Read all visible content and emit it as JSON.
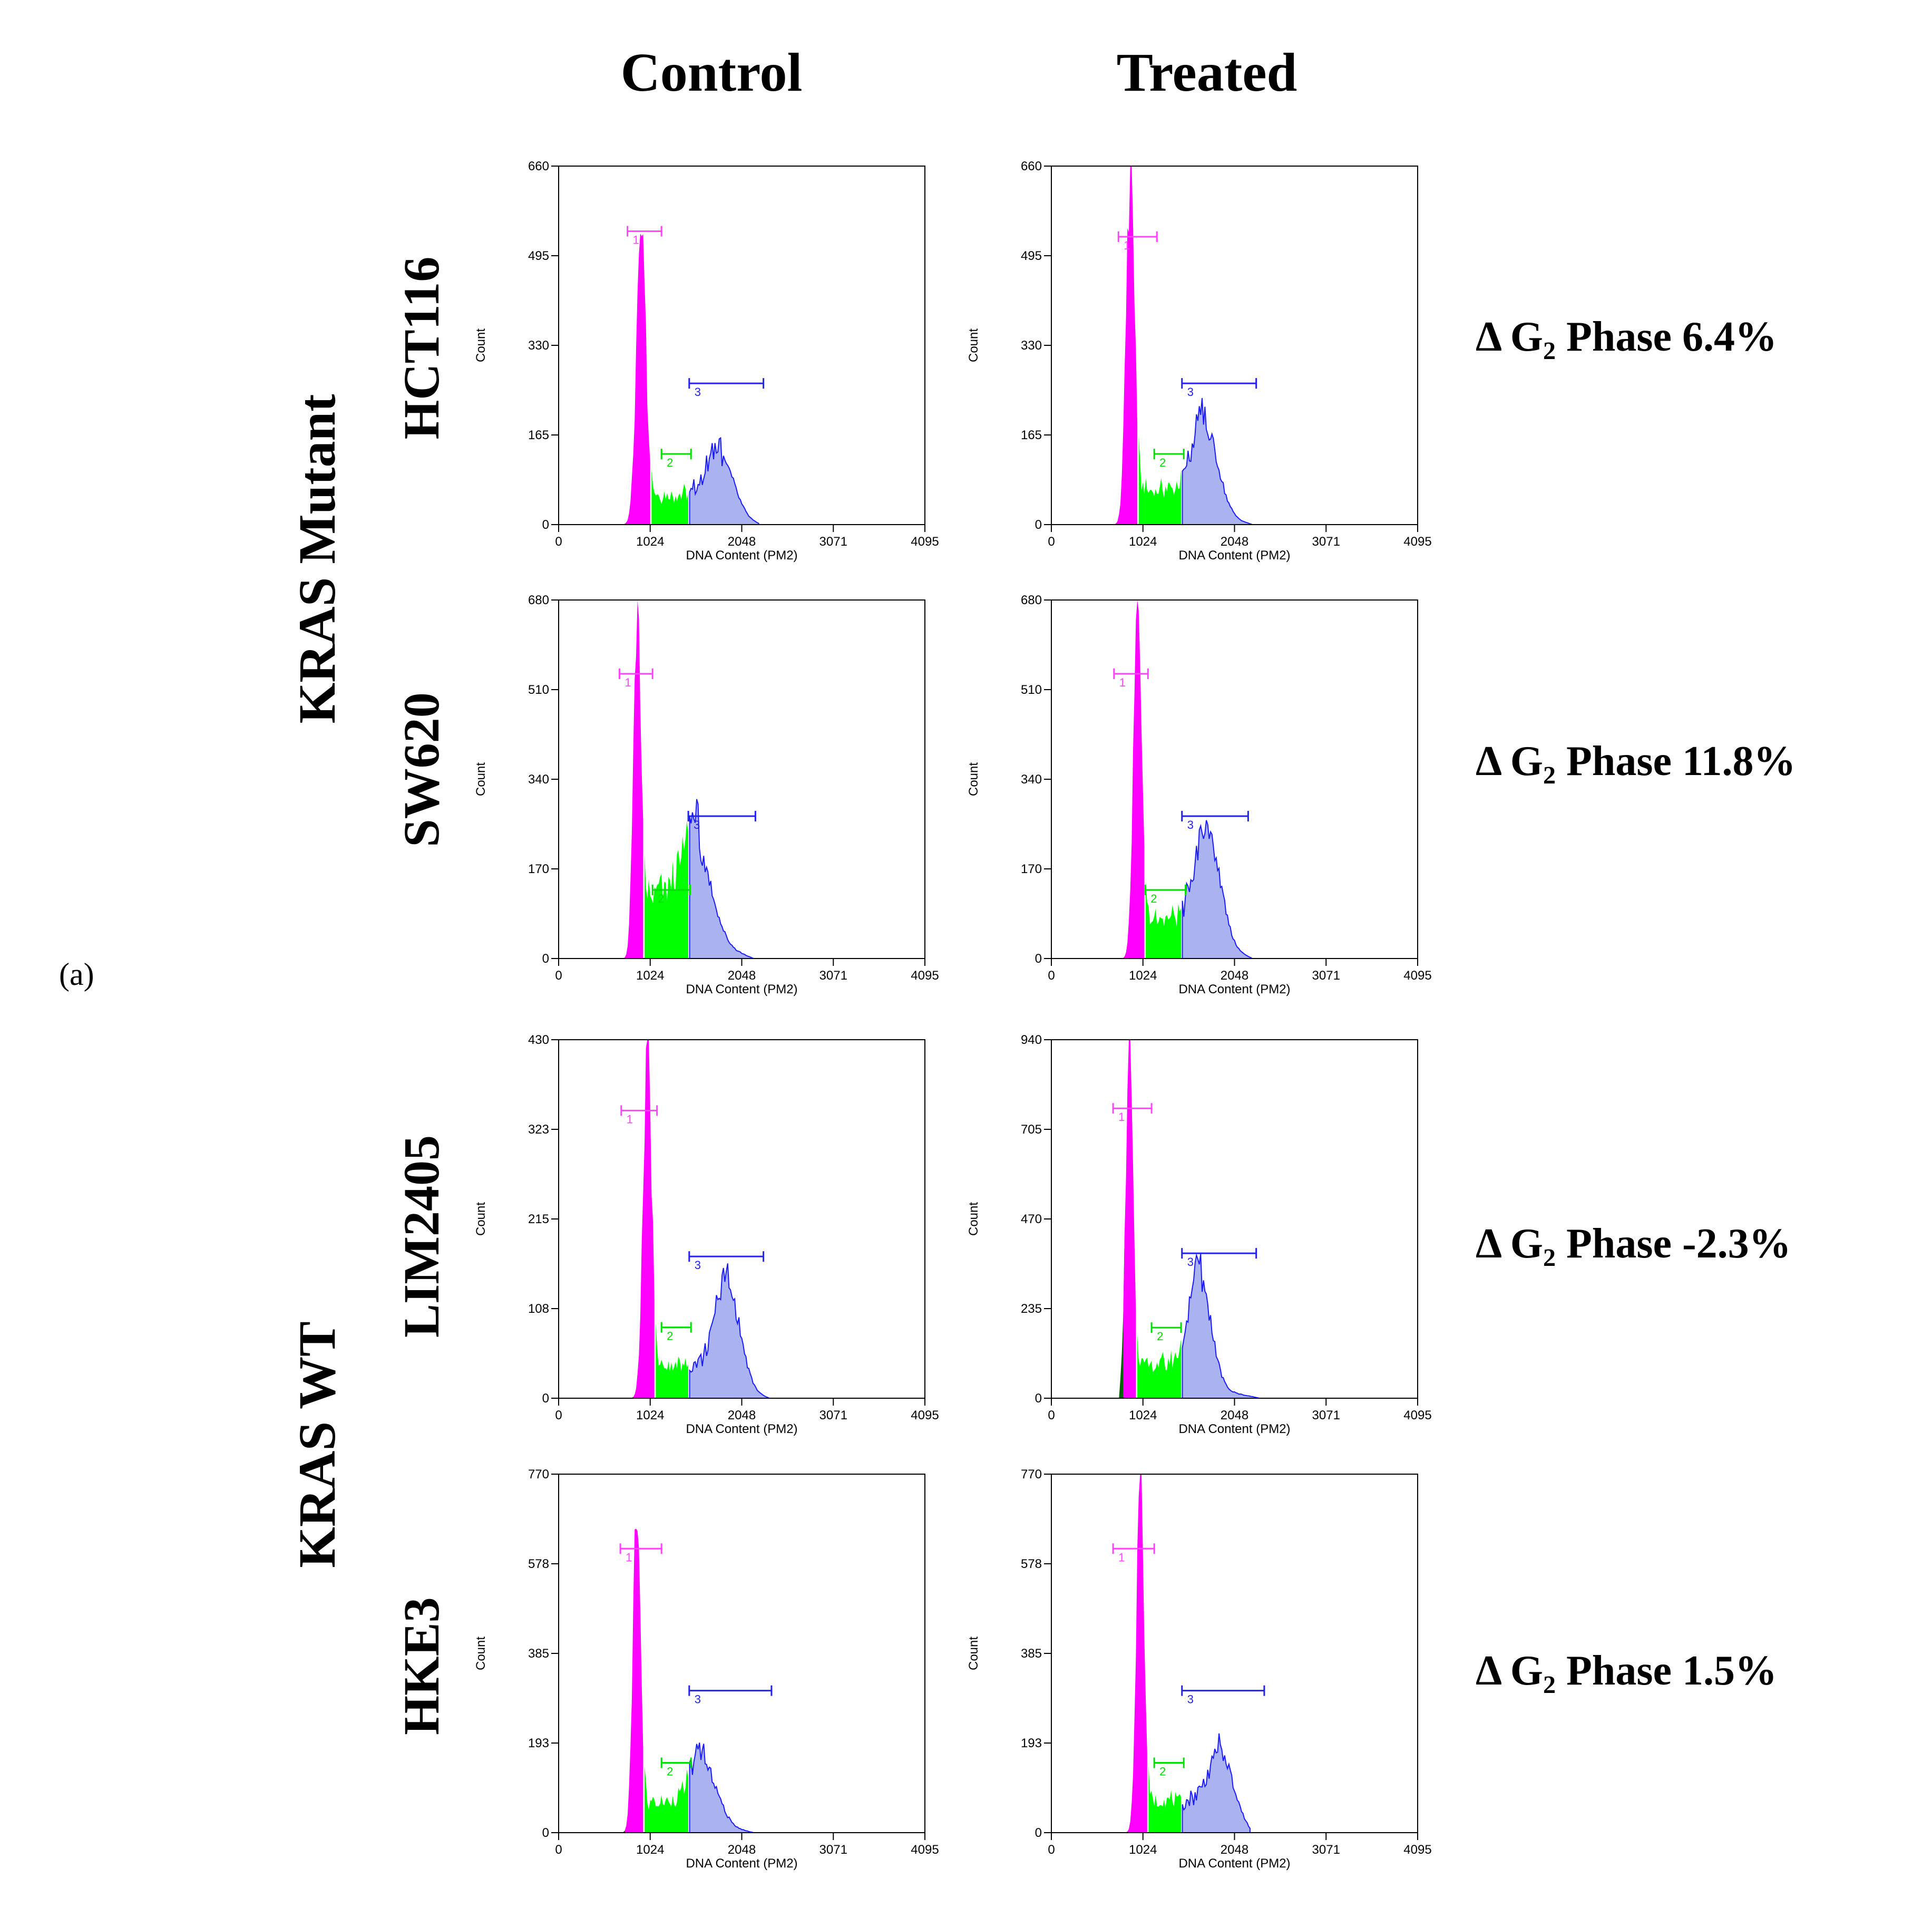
{
  "figure": {
    "panel_label": "(a)",
    "columns": [
      "Control",
      "Treated"
    ],
    "groups": [
      {
        "label": "KRAS Mutant",
        "rows": [
          0,
          1
        ]
      },
      {
        "label": "KRAS WT",
        "rows": [
          2,
          3
        ]
      }
    ],
    "rows": [
      {
        "cell_line": "HCT116",
        "delta_text": "Δ G₂ Phase 6.4%"
      },
      {
        "cell_line": "SW620",
        "delta_text": "Δ G₂ Phase 11.8%"
      },
      {
        "cell_line": "LIM2405",
        "delta_text": "Δ G₂ Phase -2.3%"
      },
      {
        "cell_line": "HKE3",
        "delta_text": "Δ G₂ Phase 1.5%"
      }
    ]
  },
  "colors": {
    "g1": "#ff00ff",
    "s": "#00ff00",
    "g2": "#aab2f0",
    "g2_edge": "#1a1aff",
    "tail": "#006400",
    "gate1": "#ff44ff",
    "gate2": "#00dd00",
    "gate3": "#2222ee"
  },
  "chart_data": [
    {
      "type": "area",
      "title": "HCT116 Control",
      "xlabel": "DNA Content (PM2)",
      "ylabel": "Count",
      "xlim": [
        0,
        4095
      ],
      "x_ticks": [
        "0",
        "1024",
        "2048",
        "3071",
        "4095"
      ],
      "ylim": [
        0,
        660
      ],
      "y_ticks": [
        "0",
        "165",
        "330",
        "495",
        "660"
      ],
      "peaks": {
        "g1_x": 920,
        "g1_h": 510,
        "g1_w": 95,
        "s_level": 55,
        "g2_x": 1820,
        "g2_h": 100,
        "g2_w": 240,
        "left": 700,
        "right": 2250
      },
      "gates": {
        "gate1": [
          770,
          1150,
          540
        ],
        "gate2": [
          1150,
          1480,
          130
        ],
        "gate3": [
          1460,
          2290,
          260
        ]
      }
    },
    {
      "type": "area",
      "title": "HCT116 Treated",
      "xlabel": "DNA Content (PM2)",
      "ylabel": "Count",
      "xlim": [
        0,
        4095
      ],
      "x_ticks": [
        "0",
        "1024",
        "2048",
        "3071",
        "4095"
      ],
      "ylim": [
        0,
        660
      ],
      "y_ticks": [
        "0",
        "165",
        "330",
        "495",
        "660"
      ],
      "peaks": {
        "g1_x": 880,
        "g1_h": 620,
        "g1_w": 85,
        "s_level": 65,
        "g2_x": 1730,
        "g2_h": 150,
        "g2_w": 230,
        "left": 680,
        "right": 2250
      },
      "gates": {
        "gate1": [
          750,
          1180,
          530
        ],
        "gate2": [
          1150,
          1480,
          130
        ],
        "gate3": [
          1460,
          2290,
          260
        ]
      }
    },
    {
      "type": "area",
      "title": "SW620 Control",
      "xlabel": "DNA Content (PM2)",
      "ylabel": "Count",
      "xlim": [
        0,
        4095
      ],
      "x_ticks": [
        "0",
        "1024",
        "2048",
        "3071",
        "4095"
      ],
      "ylim": [
        0,
        680
      ],
      "y_ticks": [
        "0",
        "170",
        "340",
        "510",
        "680"
      ],
      "peaks": {
        "g1_x": 870,
        "g1_h": 640,
        "g1_w": 70,
        "s_level": 120,
        "g2_x": 1560,
        "g2_h": 160,
        "g2_w": 260,
        "left": 580,
        "right": 2180
      },
      "gates": {
        "gate1": [
          680,
          1050,
          540
        ],
        "gate2": [
          1050,
          1470,
          130
        ],
        "gate3": [
          1450,
          2200,
          270
        ]
      }
    },
    {
      "type": "area",
      "title": "SW620 Treated",
      "xlabel": "DNA Content (PM2)",
      "ylabel": "Count",
      "xlim": [
        0,
        4095
      ],
      "x_ticks": [
        "0",
        "1024",
        "2048",
        "3071",
        "4095"
      ],
      "ylim": [
        0,
        680
      ],
      "y_ticks": [
        "0",
        "170",
        "340",
        "510",
        "680"
      ],
      "peaks": {
        "g1_x": 960,
        "g1_h": 650,
        "g1_w": 80,
        "s_level": 75,
        "g2_x": 1760,
        "g2_h": 200,
        "g2_w": 230,
        "left": 600,
        "right": 2250
      },
      "gates": {
        "gate1": [
          700,
          1080,
          540
        ],
        "gate2": [
          1050,
          1500,
          130
        ],
        "gate3": [
          1460,
          2200,
          270
        ]
      }
    },
    {
      "type": "area",
      "title": "LIM2405 Control",
      "xlabel": "DNA Content (PM2)",
      "ylabel": "Count",
      "xlim": [
        0,
        4095
      ],
      "x_ticks": [
        "0",
        "1024",
        "2048",
        "3071",
        "4095"
      ],
      "ylim": [
        0,
        430
      ],
      "y_ticks": [
        "0",
        "108",
        "215",
        "323",
        "430"
      ],
      "peaks": {
        "g1_x": 990,
        "g1_h": 400,
        "g1_w": 85,
        "s_level": 40,
        "g2_x": 1900,
        "g2_h": 115,
        "g2_w": 220,
        "left": 780,
        "right": 2350
      },
      "gates": {
        "gate1": [
          700,
          1100,
          345
        ],
        "gate2": [
          1150,
          1480,
          85
        ],
        "gate3": [
          1460,
          2290,
          170
        ]
      }
    },
    {
      "type": "area",
      "title": "LIM2405 Treated",
      "xlabel": "DNA Content (PM2)",
      "ylabel": "Count",
      "xlim": [
        0,
        4095
      ],
      "x_ticks": [
        "0",
        "1024",
        "2048",
        "3071",
        "4095"
      ],
      "ylim": [
        0,
        940
      ],
      "y_ticks": [
        "0",
        "235",
        "470",
        "705",
        "940"
      ],
      "peaks": {
        "g1_x": 870,
        "g1_h": 880,
        "g1_w": 75,
        "s_level": 90,
        "g2_x": 1670,
        "g2_h": 270,
        "g2_w": 200,
        "left": 760,
        "right": 2330
      },
      "gates": {
        "gate1": [
          690,
          1120,
          760
        ],
        "gate2": [
          1120,
          1450,
          185
        ],
        "gate3": [
          1460,
          2290,
          380
        ]
      }
    },
    {
      "type": "area",
      "title": "HKE3 Control",
      "xlabel": "DNA Content (PM2)",
      "ylabel": "Count",
      "xlim": [
        0,
        4095
      ],
      "x_ticks": [
        "0",
        "1024",
        "2048",
        "3071",
        "4095"
      ],
      "ylim": [
        0,
        770
      ],
      "y_ticks": [
        "0",
        "193",
        "385",
        "578",
        "770"
      ],
      "peaks": {
        "g1_x": 870,
        "g1_h": 680,
        "g1_w": 75,
        "s_level": 65,
        "g2_x": 1630,
        "g2_h": 120,
        "g2_w": 240,
        "left": 700,
        "right": 2180
      },
      "gates": {
        "gate1": [
          690,
          1150,
          610
        ],
        "gate2": [
          1150,
          1480,
          150
        ],
        "gate3": [
          1460,
          2380,
          305
        ]
      }
    },
    {
      "type": "area",
      "title": "HKE3 Treated",
      "xlabel": "DNA Content (PM2)",
      "ylabel": "Count",
      "xlim": [
        0,
        4095
      ],
      "x_ticks": [
        "0",
        "1024",
        "2048",
        "3071",
        "4095"
      ],
      "ylim": [
        0,
        770
      ],
      "y_ticks": [
        "0",
        "193",
        "385",
        "578",
        "770"
      ],
      "peaks": {
        "g1_x": 990,
        "g1_h": 730,
        "g1_w": 75,
        "s_level": 70,
        "g2_x": 1920,
        "g2_h": 130,
        "g2_w": 220,
        "left": 800,
        "right": 2230
      },
      "gates": {
        "gate1": [
          690,
          1150,
          610
        ],
        "gate2": [
          1150,
          1480,
          150
        ],
        "gate3": [
          1460,
          2380,
          305
        ]
      }
    }
  ]
}
